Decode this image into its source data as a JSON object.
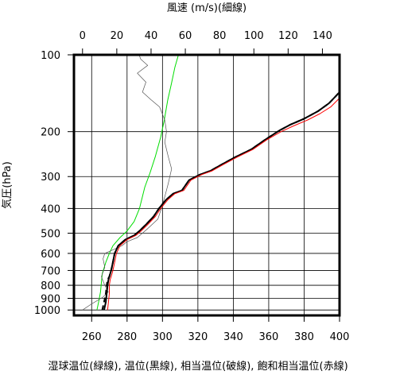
{
  "chart_data": {
    "type": "line",
    "title": "",
    "top_axis": {
      "label": "風速 (m/s)(細線)",
      "range": [
        -5,
        150
      ],
      "ticks": [
        0,
        20,
        40,
        60,
        80,
        100,
        120,
        140
      ]
    },
    "bottom_axis": {
      "label": "湿球温位(緑線), 温位(黒線), 相当温位(破線), 飽和相当温位(赤線)",
      "range": [
        250,
        400
      ],
      "ticks": [
        260,
        280,
        300,
        320,
        340,
        360,
        380,
        400
      ]
    },
    "y_axis": {
      "label": "気圧(hPa)",
      "scale": "log",
      "range": [
        1050,
        100
      ],
      "reversed": true,
      "ticks": [
        100,
        200,
        300,
        400,
        500,
        600,
        700,
        800,
        900,
        1000
      ],
      "tick_labels": [
        "100",
        "200",
        "300",
        "400",
        "500",
        "600",
        "700",
        "800",
        "900",
        "1000"
      ]
    },
    "grid": true,
    "series": [
      {
        "key": "wet_bulb_pt",
        "axis": "bottom",
        "color": "#00dd00",
        "style": "solid",
        "points": [
          [
            263,
            1000
          ],
          [
            264,
            925
          ],
          [
            265,
            850
          ],
          [
            265.5,
            780
          ],
          [
            266,
            720
          ],
          [
            268,
            650
          ],
          [
            270,
            600
          ],
          [
            272,
            560
          ],
          [
            276,
            520
          ],
          [
            280,
            490
          ],
          [
            284,
            450
          ],
          [
            287,
            400
          ],
          [
            290,
            330
          ],
          [
            293,
            290
          ],
          [
            296,
            250
          ],
          [
            299,
            210
          ],
          [
            301,
            180
          ],
          [
            303,
            150
          ],
          [
            305,
            130
          ],
          [
            307,
            112
          ],
          [
            309,
            100
          ]
        ]
      },
      {
        "key": "wind_speed",
        "axis": "top",
        "color": "#555555",
        "style": "solid",
        "thin": true,
        "points": [
          [
            0,
            1000
          ],
          [
            5,
            950
          ],
          [
            12,
            890
          ],
          [
            15,
            850
          ],
          [
            13,
            800
          ],
          [
            11,
            740
          ],
          [
            13,
            680
          ],
          [
            12,
            630
          ],
          [
            13,
            600
          ],
          [
            18,
            580
          ],
          [
            23,
            560
          ],
          [
            26,
            540
          ],
          [
            32,
            520
          ],
          [
            38,
            480
          ],
          [
            44,
            440
          ],
          [
            46,
            400
          ],
          [
            48,
            360
          ],
          [
            50,
            320
          ],
          [
            52,
            280
          ],
          [
            50,
            250
          ],
          [
            48,
            220
          ],
          [
            49,
            200
          ],
          [
            48,
            180
          ],
          [
            45,
            160
          ],
          [
            40,
            150
          ],
          [
            35,
            140
          ],
          [
            37,
            128
          ],
          [
            32,
            118
          ],
          [
            38,
            110
          ],
          [
            34,
            104
          ],
          [
            33,
            100
          ]
        ]
      },
      {
        "key": "equivalent_pt",
        "axis": "bottom",
        "color": "#000000",
        "style": "dashed",
        "points": [
          [
            266,
            1000
          ],
          [
            267,
            930
          ],
          [
            268,
            860
          ],
          [
            268.5,
            800
          ],
          [
            269,
            760
          ],
          [
            270,
            740
          ],
          [
            271,
            700
          ],
          [
            272,
            650
          ],
          [
            273,
            600
          ],
          [
            275,
            560
          ],
          [
            279,
            530
          ],
          [
            284,
            510
          ],
          [
            287,
            490
          ],
          [
            291,
            460
          ],
          [
            295,
            430
          ],
          [
            298,
            400
          ],
          [
            302,
            370
          ],
          [
            306,
            350
          ],
          [
            311,
            340
          ],
          [
            315,
            310
          ],
          [
            321,
            295
          ],
          [
            327,
            285
          ],
          [
            333,
            270
          ],
          [
            341,
            252
          ],
          [
            350,
            235
          ],
          [
            358,
            215
          ],
          [
            366,
            198
          ],
          [
            372,
            188
          ],
          [
            380,
            178
          ],
          [
            388,
            166
          ],
          [
            394,
            155
          ],
          [
            398,
            145
          ],
          [
            400,
            140
          ]
        ]
      },
      {
        "key": "potential_temp",
        "axis": "bottom",
        "color": "#000000",
        "style": "solid",
        "thick": true,
        "points": [
          [
            267,
            1000
          ],
          [
            268,
            930
          ],
          [
            268.5,
            860
          ],
          [
            269,
            800
          ],
          [
            269.5,
            760
          ],
          [
            270,
            740
          ],
          [
            271,
            700
          ],
          [
            272,
            650
          ],
          [
            273,
            600
          ],
          [
            275,
            560
          ],
          [
            279,
            530
          ],
          [
            284,
            510
          ],
          [
            287,
            490
          ],
          [
            291,
            460
          ],
          [
            295,
            430
          ],
          [
            298,
            400
          ],
          [
            302,
            370
          ],
          [
            306,
            350
          ],
          [
            311,
            340
          ],
          [
            315,
            310
          ],
          [
            321,
            295
          ],
          [
            327,
            285
          ],
          [
            333,
            270
          ],
          [
            341,
            252
          ],
          [
            350,
            235
          ],
          [
            358,
            215
          ],
          [
            366,
            198
          ],
          [
            372,
            188
          ],
          [
            380,
            178
          ],
          [
            388,
            166
          ],
          [
            394,
            155
          ],
          [
            398,
            145
          ],
          [
            400,
            140
          ]
        ]
      },
      {
        "key": "sat_equivalent_pt",
        "axis": "bottom",
        "color": "#ff0000",
        "style": "solid",
        "points": [
          [
            269,
            1000
          ],
          [
            269.5,
            930
          ],
          [
            270,
            860
          ],
          [
            270,
            800
          ],
          [
            270.5,
            760
          ],
          [
            271,
            740
          ],
          [
            272,
            700
          ],
          [
            273,
            650
          ],
          [
            274,
            600
          ],
          [
            276,
            560
          ],
          [
            280,
            530
          ],
          [
            285,
            510
          ],
          [
            288,
            490
          ],
          [
            292,
            460
          ],
          [
            296,
            430
          ],
          [
            299,
            400
          ],
          [
            303,
            370
          ],
          [
            307,
            350
          ],
          [
            312,
            340
          ],
          [
            316,
            310
          ],
          [
            322,
            295
          ],
          [
            328,
            285
          ],
          [
            334,
            270
          ],
          [
            342,
            252
          ],
          [
            351,
            235
          ],
          [
            359,
            215
          ],
          [
            367,
            200
          ],
          [
            374,
            190
          ],
          [
            382,
            180
          ],
          [
            389,
            170
          ],
          [
            395,
            160
          ],
          [
            399,
            150
          ],
          [
            400,
            148
          ]
        ]
      }
    ]
  }
}
